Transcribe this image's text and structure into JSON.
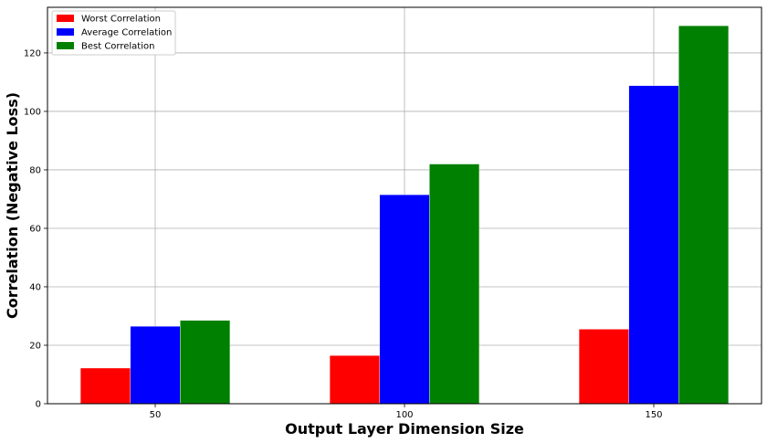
{
  "chart_data": {
    "type": "bar",
    "title": "",
    "xlabel": "Output Layer Dimension Size",
    "ylabel": "Correlation (Negative Loss)",
    "categories": [
      "50",
      "100",
      "150"
    ],
    "series": [
      {
        "name": "Worst Correlation",
        "color": "#ff0000",
        "values": [
          12.2,
          16.5,
          25.5
        ]
      },
      {
        "name": "Average Correlation",
        "color": "#0000ff",
        "values": [
          26.5,
          71.5,
          108.8
        ]
      },
      {
        "name": "Best Correlation",
        "color": "#008000",
        "values": [
          28.5,
          82.0,
          129.3
        ]
      }
    ],
    "ylim": [
      0,
      135.6
    ],
    "yticks": [
      0,
      20,
      40,
      60,
      80,
      100,
      120
    ],
    "grid": true,
    "legend_position": "top-left"
  }
}
